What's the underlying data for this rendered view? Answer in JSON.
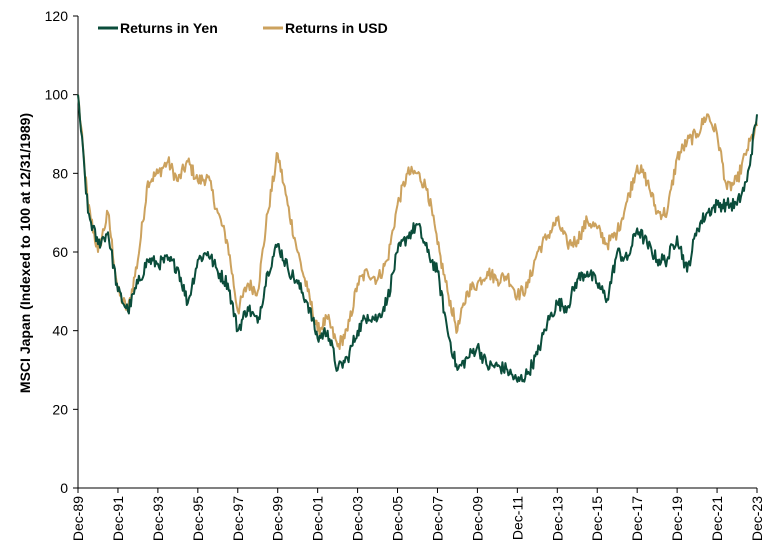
{
  "chart_data": {
    "type": "line",
    "title": "",
    "xlabel": "",
    "ylabel": "MSCI Japan (Indexed to 100 at 12/31/1989)",
    "ylim": [
      0,
      120
    ],
    "yticks": [
      0,
      20,
      40,
      60,
      80,
      100,
      120
    ],
    "x_tick_labels": [
      "Dec-89",
      "Dec-91",
      "Dec-93",
      "Dec-95",
      "Dec-97",
      "Dec-99",
      "Dec-01",
      "Dec-03",
      "Dec-05",
      "Dec-07",
      "Dec-09",
      "Dec-11",
      "Dec-13",
      "Dec-15",
      "Dec-17",
      "Dec-19",
      "Dec-21",
      "Dec-23"
    ],
    "x": [
      "Dec-89",
      "Jun-90",
      "Dec-90",
      "Jun-91",
      "Dec-91",
      "Jun-92",
      "Dec-92",
      "Jun-93",
      "Dec-93",
      "Jun-94",
      "Dec-94",
      "Jun-95",
      "Dec-95",
      "Jun-96",
      "Dec-96",
      "Jun-97",
      "Dec-97",
      "Jun-98",
      "Dec-98",
      "Jun-99",
      "Dec-99",
      "Jun-00",
      "Dec-00",
      "Jun-01",
      "Dec-01",
      "Jun-02",
      "Dec-02",
      "Jun-03",
      "Dec-03",
      "Jun-04",
      "Dec-04",
      "Jun-05",
      "Dec-05",
      "Jun-06",
      "Dec-06",
      "Jun-07",
      "Dec-07",
      "Jun-08",
      "Dec-08",
      "Jun-09",
      "Dec-09",
      "Jun-10",
      "Dec-10",
      "Jun-11",
      "Dec-11",
      "Jun-12",
      "Dec-12",
      "Jun-13",
      "Dec-13",
      "Jun-14",
      "Dec-14",
      "Jun-15",
      "Dec-15",
      "Jun-16",
      "Dec-16",
      "Jun-17",
      "Dec-17",
      "Jun-18",
      "Dec-18",
      "Jun-19",
      "Dec-19",
      "Jun-20",
      "Dec-20",
      "Jun-21",
      "Dec-21",
      "Jun-22",
      "Dec-22",
      "Jun-23",
      "Dec-23"
    ],
    "series": [
      {
        "name": "Returns in Yen",
        "color": "#0b4d3b",
        "values": [
          100,
          70,
          62,
          65,
          50,
          45,
          52,
          58,
          57,
          58,
          56,
          47,
          58,
          60,
          55,
          52,
          40,
          46,
          42,
          55,
          62,
          56,
          52,
          47,
          38,
          40,
          30,
          33,
          40,
          44,
          43,
          48,
          60,
          64,
          67,
          60,
          55,
          40,
          30,
          33,
          36,
          31,
          31,
          30,
          27,
          29,
          34,
          42,
          47,
          46,
          53,
          55,
          52,
          48,
          60,
          58,
          66,
          62,
          58,
          58,
          64,
          55,
          66,
          70,
          72,
          72,
          72,
          78,
          95
        ]
      },
      {
        "name": "Returns in USD",
        "color": "#cca25e",
        "values": [
          100,
          72,
          60,
          70,
          50,
          45,
          58,
          78,
          80,
          83,
          78,
          83,
          78,
          79,
          70,
          62,
          45,
          52,
          50,
          70,
          85,
          72,
          60,
          50,
          40,
          43,
          36,
          40,
          52,
          55,
          53,
          58,
          72,
          80,
          80,
          76,
          62,
          50,
          40,
          50,
          52,
          55,
          53,
          54,
          49,
          51,
          60,
          64,
          68,
          62,
          63,
          68,
          66,
          62,
          65,
          73,
          82,
          78,
          70,
          70,
          84,
          88,
          90,
          95,
          90,
          76,
          78,
          86,
          92
        ]
      }
    ],
    "legend_position": "top-left",
    "grid": false
  }
}
